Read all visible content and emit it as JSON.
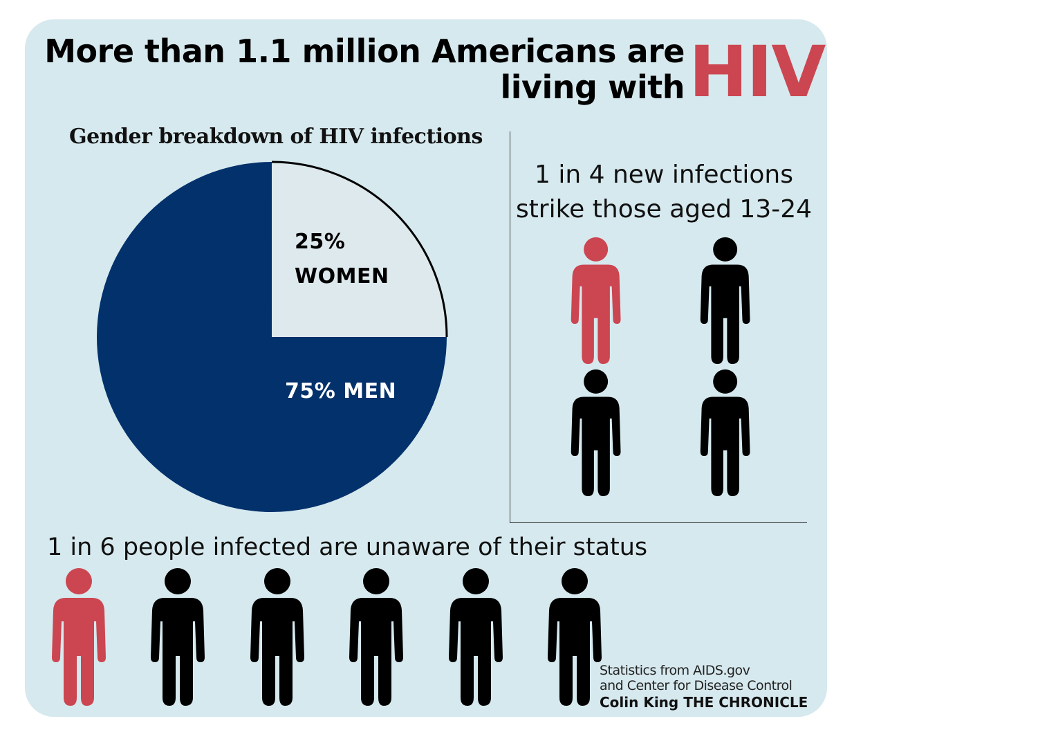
{
  "colors": {
    "background": "#d6e9ee",
    "accent_red": "#cb4650",
    "men_navy": "#03316c",
    "women_light": "#dde9ed",
    "figure_black": "#000000"
  },
  "header": {
    "title_line1": "More than 1.1 million Americans are",
    "title_line2": "living with",
    "title_highlight": "HIV"
  },
  "chart_data": [
    {
      "type": "pie",
      "title": "Gender breakdown of HIV infections",
      "slices": [
        {
          "label": "WOMEN",
          "value": 25,
          "display_pct": "25%",
          "display_name": "WOMEN",
          "color": "#dde9ed"
        },
        {
          "label": "MEN",
          "value": 75,
          "display": "75% MEN",
          "color": "#03316c"
        }
      ]
    }
  ],
  "stats": {
    "young": {
      "line1": "1 in 4 new infections",
      "line2": "strike those aged 13-24",
      "figures": [
        "red",
        "black",
        "black",
        "black"
      ],
      "icon": "person-icon"
    },
    "unaware": {
      "text": "1 in 6 people infected are unaware of their status",
      "figures": [
        "red",
        "black",
        "black",
        "black",
        "black",
        "black"
      ],
      "icon": "person-icon"
    }
  },
  "credits": {
    "source_line1": "Statistics from  AIDS.gov",
    "source_line2": "and Center for Disease Control",
    "author": "Colin King THE CHRONICLE"
  }
}
